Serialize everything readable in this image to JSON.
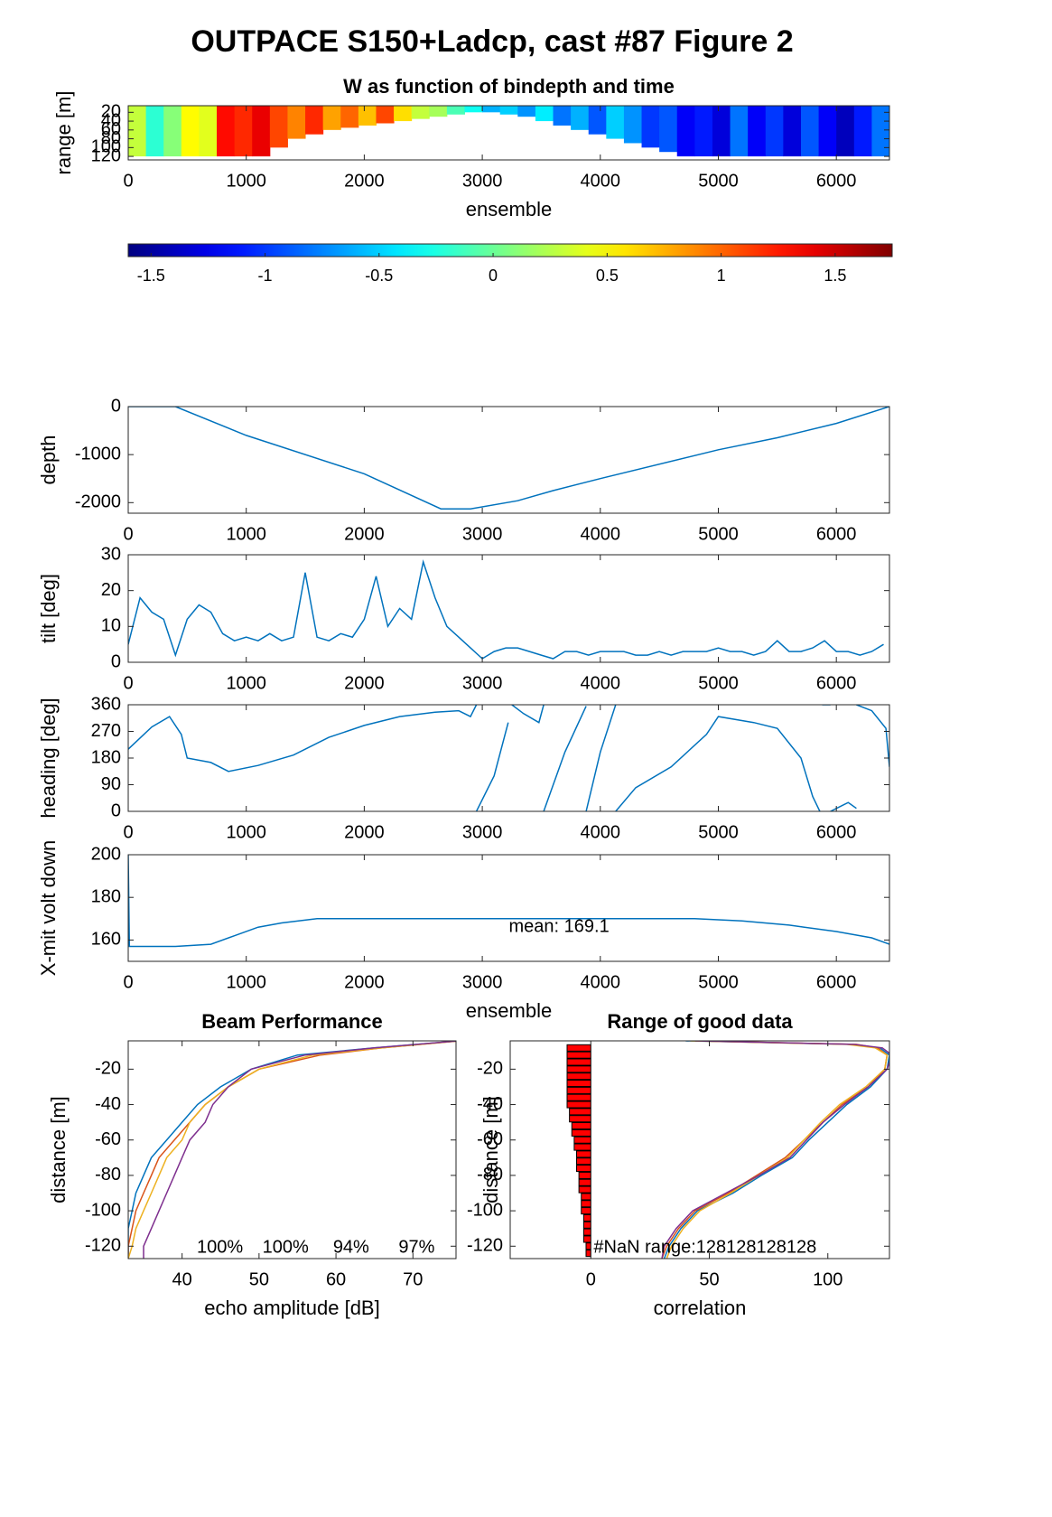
{
  "title": "OUTPACE S150+Ladcp, cast #87 Figure 2",
  "chart_data": [
    {
      "type": "heatmap",
      "title": "W as function of bindepth and time",
      "xlabel": "ensemble",
      "ylabel": "range [m]",
      "xlim": [
        0,
        6450
      ],
      "ylim": [
        5,
        128
      ],
      "ydir": "reverse",
      "xticks": [
        0,
        1000,
        2000,
        3000,
        4000,
        5000,
        6000
      ],
      "yticks": [
        20,
        40,
        60,
        80,
        100,
        120
      ],
      "x": [
        75,
        225,
        375,
        525,
        675,
        825,
        975,
        1125,
        1275,
        1425,
        1575,
        1725,
        1875,
        2025,
        2175,
        2325,
        2475,
        2625,
        2775,
        2925,
        3075,
        3225,
        3375,
        3525,
        3675,
        3825,
        3975,
        4125,
        4275,
        4425,
        4575,
        4725,
        4875,
        5025,
        5175,
        5325,
        5475,
        5625,
        5775,
        5925,
        6075,
        6225,
        6375
      ],
      "values": [
        0.3,
        -0.2,
        0.1,
        0.5,
        0.4,
        1.3,
        1.2,
        1.4,
        1.1,
        0.9,
        1.2,
        0.8,
        1.0,
        0.7,
        1.1,
        0.6,
        0.3,
        0.2,
        -0.1,
        -0.3,
        -0.6,
        -0.5,
        -0.7,
        -0.4,
        -0.8,
        -0.6,
        -0.9,
        -0.5,
        -0.7,
        -1.0,
        -0.9,
        -1.2,
        -1.1,
        -1.3,
        -0.8,
        -1.2,
        -1.0,
        -1.3,
        -0.9,
        -1.2,
        -1.4,
        -1.1,
        -0.8
      ],
      "range": [
        120,
        120,
        120,
        120,
        120,
        120,
        120,
        120,
        100,
        80,
        70,
        60,
        55,
        50,
        45,
        40,
        35,
        30,
        25,
        20,
        20,
        25,
        30,
        40,
        50,
        60,
        70,
        80,
        90,
        100,
        110,
        120,
        120,
        120,
        120,
        120,
        120,
        120,
        120,
        120,
        120,
        120,
        120
      ]
    },
    {
      "type": "colorbar",
      "colormap": "jet",
      "clim": [
        -1.6,
        1.75
      ],
      "ticks": [
        -1.5,
        -1,
        -0.5,
        0,
        0.5,
        1,
        1.5
      ]
    },
    {
      "type": "line",
      "ylabel": "depth",
      "xlim": [
        0,
        6450
      ],
      "ylim": [
        -2220,
        0
      ],
      "xticks": [
        0,
        1000,
        2000,
        3000,
        4000,
        5000,
        6000
      ],
      "yticks": [
        -2000,
        -1000,
        0
      ],
      "x": [
        0,
        400,
        1000,
        2000,
        2650,
        2900,
        3300,
        3600,
        4000,
        5000,
        5500,
        6000,
        6450
      ],
      "series": [
        {
          "color": "#0072bd",
          "values": [
            0,
            0,
            -600,
            -1400,
            -2130,
            -2130,
            -1960,
            -1750,
            -1500,
            -900,
            -650,
            -350,
            0
          ]
        }
      ]
    },
    {
      "type": "line",
      "ylabel": "tilt [deg]",
      "xlim": [
        0,
        6450
      ],
      "ylim": [
        0,
        30
      ],
      "xticks": [
        0,
        1000,
        2000,
        3000,
        4000,
        5000,
        6000
      ],
      "yticks": [
        0,
        10,
        20,
        30
      ],
      "x": [
        0,
        100,
        200,
        300,
        400,
        500,
        600,
        700,
        800,
        900,
        1000,
        1100,
        1200,
        1300,
        1400,
        1500,
        1600,
        1700,
        1800,
        1900,
        2000,
        2100,
        2200,
        2300,
        2400,
        2500,
        2600,
        2700,
        2800,
        2900,
        3000,
        3100,
        3200,
        3300,
        3400,
        3500,
        3600,
        3700,
        3800,
        3900,
        4000,
        4100,
        4200,
        4300,
        4400,
        4500,
        4600,
        4700,
        4800,
        4900,
        5000,
        5100,
        5200,
        5300,
        5400,
        5500,
        5600,
        5700,
        5800,
        5900,
        6000,
        6100,
        6200,
        6300,
        6400
      ],
      "series": [
        {
          "color": "#0072bd",
          "values": [
            5,
            18,
            14,
            12,
            2,
            12,
            16,
            14,
            8,
            6,
            7,
            6,
            8,
            6,
            7,
            25,
            7,
            6,
            8,
            7,
            12,
            24,
            10,
            15,
            12,
            28,
            18,
            10,
            7,
            4,
            1,
            3,
            4,
            4,
            3,
            2,
            1,
            3,
            3,
            2,
            3,
            3,
            3,
            2,
            2,
            3,
            2,
            3,
            3,
            3,
            4,
            3,
            3,
            2,
            3,
            6,
            3,
            3,
            4,
            6,
            3,
            3,
            2,
            3,
            5
          ]
        }
      ]
    },
    {
      "type": "line",
      "ylabel": "heading [deg]",
      "xlim": [
        0,
        6450
      ],
      "ylim": [
        0,
        360
      ],
      "xticks": [
        0,
        1000,
        2000,
        3000,
        4000,
        5000,
        6000
      ],
      "yticks": [
        0,
        90,
        180,
        270,
        360
      ],
      "x": [
        0,
        200,
        350,
        450,
        500,
        700,
        850,
        1100,
        1400,
        1700,
        2000,
        2300,
        2600,
        2800,
        2900,
        2950,
        null,
        2950,
        3100,
        3220,
        null,
        3250,
        3350,
        3480,
        3520,
        null,
        3520,
        3700,
        3880,
        null,
        3880,
        4000,
        4130,
        null,
        4130,
        4300,
        4600,
        4900,
        5000,
        5300,
        5500,
        5700,
        5800,
        5860,
        null,
        5880,
        5950,
        null,
        5950,
        6100,
        6170,
        null,
        6170,
        6300,
        6420,
        6450
      ],
      "series": [
        {
          "color": "#0072bd",
          "values": [
            210,
            285,
            320,
            260,
            180,
            165,
            135,
            155,
            190,
            250,
            290,
            320,
            335,
            340,
            320,
            360,
            null,
            0,
            120,
            300,
            null,
            360,
            330,
            300,
            360,
            null,
            0,
            200,
            355,
            null,
            0,
            200,
            360,
            null,
            0,
            80,
            150,
            260,
            320,
            300,
            280,
            180,
            50,
            0,
            null,
            360,
            360,
            null,
            0,
            30,
            10,
            null,
            360,
            340,
            280,
            150
          ]
        }
      ]
    },
    {
      "type": "line",
      "ylabel": "X-mit volt down",
      "xlabel": "ensemble",
      "annotation": "mean: 169.1",
      "xlim": [
        0,
        6450
      ],
      "ylim": [
        150,
        200
      ],
      "xticks": [
        0,
        1000,
        2000,
        3000,
        4000,
        5000,
        6000
      ],
      "yticks": [
        160,
        180,
        200
      ],
      "x": [
        0,
        10,
        400,
        700,
        900,
        1100,
        1300,
        1600,
        2000,
        3000,
        4000,
        4800,
        5200,
        5600,
        6000,
        6300,
        6450
      ],
      "series": [
        {
          "color": "#0072bd",
          "values": [
            200,
            157,
            157,
            158,
            162,
            166,
            168,
            170,
            170,
            170,
            170,
            170,
            169,
            167,
            164,
            161,
            158
          ]
        }
      ]
    },
    {
      "type": "profile",
      "title": "Beam Performance",
      "xlabel": "echo amplitude [dB]",
      "ylabel": "distance [m]",
      "annotations": [
        "100%",
        "100%",
        "94%",
        "97%"
      ],
      "xlim": [
        33,
        75.6
      ],
      "ylim": [
        -127,
        -4
      ],
      "xticks": [
        40,
        50,
        60,
        70
      ],
      "yticks": [
        -120,
        -100,
        -80,
        -60,
        -40,
        -20
      ],
      "y": [
        -4,
        -8,
        -12,
        -20,
        -30,
        -40,
        -50,
        -60,
        -70,
        -80,
        -90,
        -100,
        -110,
        -120,
        -127
      ],
      "series": [
        {
          "color": "#0072bd",
          "values": [
            76,
            65,
            55,
            49,
            45,
            42,
            40,
            38,
            36,
            35,
            34,
            33.5,
            33,
            33,
            33
          ]
        },
        {
          "color": "#d95319",
          "values": [
            76,
            66,
            58,
            50,
            46,
            43,
            41,
            39,
            37,
            36,
            35,
            34,
            33.5,
            33,
            33
          ]
        },
        {
          "color": "#edb120",
          "values": [
            76,
            66,
            57,
            50,
            46,
            43,
            41,
            40,
            38,
            37,
            36,
            35,
            34,
            33.5,
            33
          ]
        },
        {
          "color": "#7e2f8e",
          "values": [
            76,
            65,
            56,
            49,
            46,
            44,
            43,
            41,
            40,
            39,
            38,
            37,
            36,
            35,
            35
          ]
        }
      ]
    },
    {
      "type": "profile",
      "title": "Range of good data",
      "xlabel": "correlation",
      "ylabel": "distance [m]",
      "annotation": "#NaN range:128128128128",
      "xlim": [
        -34,
        126
      ],
      "ylim": [
        -127,
        -4
      ],
      "xticks": [
        0,
        50,
        100
      ],
      "yticks": [
        -120,
        -100,
        -80,
        -60,
        -40,
        -20
      ],
      "y": [
        -4,
        -6,
        -8,
        -12,
        -20,
        -30,
        -40,
        -50,
        -60,
        -70,
        -80,
        -90,
        -100,
        -110,
        -120,
        -127
      ],
      "series": [
        {
          "color": "#0072bd",
          "values": [
            40,
            110,
            122,
            126,
            125,
            118,
            108,
            100,
            92,
            85,
            72,
            60,
            45,
            38,
            33,
            31
          ]
        },
        {
          "color": "#d95319",
          "values": [
            45,
            112,
            121,
            125,
            124,
            117,
            106,
            98,
            90,
            82,
            70,
            58,
            44,
            37,
            32,
            30
          ]
        },
        {
          "color": "#edb120",
          "values": [
            42,
            108,
            120,
            125,
            124,
            116,
            105,
            97,
            90,
            83,
            71,
            59,
            46,
            39,
            34,
            32
          ]
        },
        {
          "color": "#7e2f8e",
          "values": [
            44,
            111,
            123,
            127,
            125,
            117,
            107,
            98,
            91,
            84,
            71,
            57,
            43,
            36,
            31,
            30
          ]
        }
      ],
      "bars": {
        "color": "#ff0000",
        "y": [
          -8,
          -12,
          -16,
          -20,
          -24,
          -28,
          -32,
          -36,
          -40,
          -44,
          -48,
          -52,
          -56,
          -60,
          -64,
          -68,
          -72,
          -76,
          -80,
          -84,
          -88,
          -92,
          -96,
          -100,
          -104,
          -108,
          -112,
          -116,
          -120,
          -124
        ],
        "values": [
          -10,
          -10,
          -10,
          -10,
          -10,
          -10,
          -10,
          -10,
          -10,
          -9,
          -9,
          -8,
          -8,
          -7,
          -7,
          -6,
          -6,
          -6,
          -5,
          -5,
          -5,
          -4,
          -4,
          -4,
          -3,
          -3,
          -3,
          -3,
          -2,
          -2
        ]
      }
    }
  ]
}
